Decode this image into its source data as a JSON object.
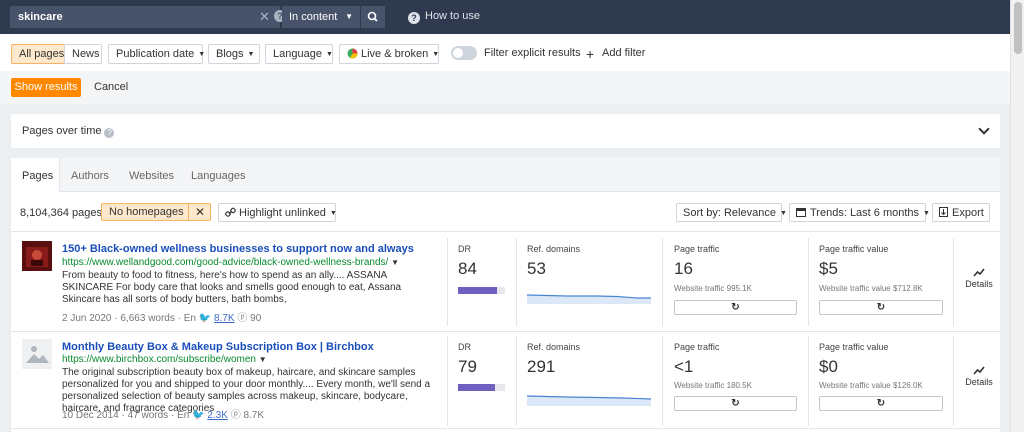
{
  "search": {
    "query": "skincare",
    "mode": "In content",
    "help": "How to use"
  },
  "filters": {
    "all_pages": "All pages",
    "news": "News",
    "publication_date": "Publication date",
    "blogs": "Blogs",
    "language": "Language",
    "live_broken": "Live & broken",
    "explicit": "Filter explicit results",
    "add_filter": "Add filter"
  },
  "actions": {
    "show": "Show results",
    "cancel": "Cancel"
  },
  "pages_over_time": "Pages over time",
  "tabs": [
    "Pages",
    "Authors",
    "Websites",
    "Languages"
  ],
  "toolbar": {
    "count": "8,104,364 pages",
    "no_homepages": "No homepages",
    "highlight": "Highlight unlinked",
    "sort": "Sort by: Relevance",
    "trends": "Trends: Last 6 months",
    "export": "Export"
  },
  "labels": {
    "dr": "DR",
    "ref_domains": "Ref. domains",
    "page_traffic": "Page traffic",
    "page_traffic_value": "Page traffic value",
    "details": "Details"
  },
  "rows": [
    {
      "title": "150+ Black-owned wellness businesses to support now and always",
      "url": "https://www.wellandgood.com/good-advice/black-owned-wellness-brands/",
      "desc": "From beauty to food to fitness, here's how to spend as an ally.... ASSANA SKINCARE For body care that looks and smells good enough to eat, Assana Skincare has all sorts of body butters, bath bombs,",
      "date": "2 Jun 2020",
      "words": "6,663 words",
      "lang": "En",
      "twitter": "8.7K",
      "pinterest": "90",
      "dr": "84",
      "dr_fraction": 0.84,
      "ref_domains": "53",
      "page_traffic": "16",
      "website_traffic": "Website traffic 995.1K",
      "traffic_value": "$5",
      "website_traffic_value": "Website traffic value $712.8K"
    },
    {
      "title": "Monthly Beauty Box & Makeup Subscription Box | Birchbox",
      "url": "https://www.birchbox.com/subscribe/women",
      "desc": "The original subscription beauty box of makeup, haircare, and skincare samples personalized for you and shipped to your door monthly.... Every month, we'll send a personalized selection of beauty samples across makeup, skincare, bodycare, haircare, and fragrance categories",
      "date": "10 Dec 2014",
      "words": "47 words",
      "lang": "En",
      "twitter": "2.3K",
      "pinterest": "8.7K",
      "dr": "79",
      "dr_fraction": 0.79,
      "ref_domains": "291",
      "page_traffic": "<1",
      "website_traffic": "Website traffic 180.5K",
      "traffic_value": "$0",
      "website_traffic_value": "Website traffic value $126.0K"
    }
  ],
  "colors": {
    "accent": "#ff8800",
    "topbar": "#2f3a4f",
    "link": "#1a4fba",
    "url": "#0a8a2e",
    "dr_bar": "#6f5fbf"
  }
}
